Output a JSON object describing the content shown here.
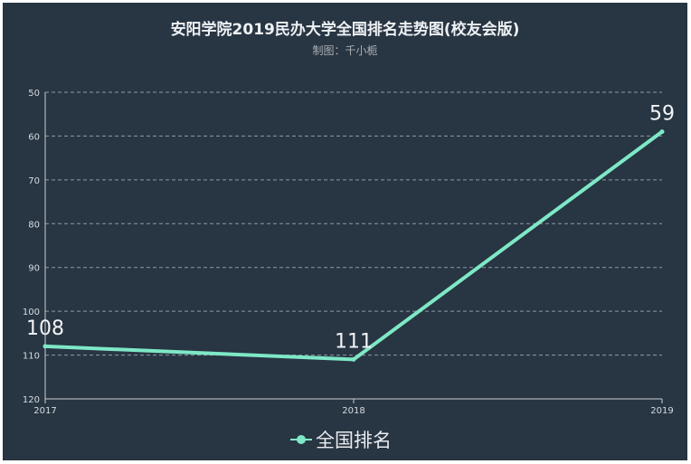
{
  "title": "安阳学院2019民办大学全国排名走势图(校友会版)",
  "subtitle": "制图：千小栀",
  "colors": {
    "background": "#283542",
    "line": "#7ee8c6",
    "grid": "#8f9aa5",
    "axis": "#c9d0d6",
    "tick_text": "#d7dde2",
    "label_text": "#f2f4f6"
  },
  "chart_data": {
    "type": "line",
    "title": "安阳学院2019民办大学全国排名走势图(校友会版)",
    "subtitle": "制图：千小栀",
    "xlabel": "",
    "ylabel": "",
    "categories": [
      "2017",
      "2018",
      "2019"
    ],
    "series": [
      {
        "name": "全国排名",
        "values": [
          108,
          111,
          59
        ]
      }
    ],
    "y_axis": {
      "min": 50,
      "max": 120,
      "inverse": true,
      "ticks": [
        50,
        60,
        70,
        80,
        90,
        100,
        110,
        120
      ]
    },
    "grid": "horizontal-dashed",
    "legend_position": "bottom-center"
  }
}
